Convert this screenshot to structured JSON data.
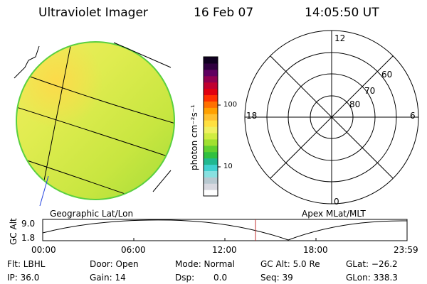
{
  "header": {
    "instrument": "Ultraviolet Imager",
    "date": "16 Feb 07",
    "time": "14:05:50 UT"
  },
  "colorbar": {
    "unit_label": "photon cm⁻²s⁻¹",
    "tick_100": "100",
    "tick_10": "10",
    "colors": [
      "#ffffff",
      "#d8d8e0",
      "#b8c8d0",
      "#88e0e0",
      "#40d0d0",
      "#20b890",
      "#30c040",
      "#60d030",
      "#a0e030",
      "#d0ec40",
      "#f0f060",
      "#ffe040",
      "#ffc030",
      "#ffa000",
      "#ff7000",
      "#ff3000",
      "#e00010",
      "#c00030",
      "#900050",
      "#600060",
      "#300040",
      "#100020"
    ]
  },
  "polar_plot": {
    "labels": {
      "mlt_12": "12",
      "mlt_18": "18",
      "mlt_6": "6",
      "mlt_0": "0",
      "lat_60": "60",
      "lat_70": "70",
      "lat_80": "80"
    }
  },
  "projection_labels": {
    "left": "Geographic Lat/Lon",
    "right": "Apex MLat/MLT"
  },
  "altitude_plot": {
    "ylabel": "GC Alt",
    "y_max": "9.0",
    "y_min": "1.8",
    "x_ticks": [
      "00:00",
      "06:00",
      "12:00",
      "18:00",
      "23:59"
    ],
    "cursor_color": "#c03030"
  },
  "info": {
    "filter": "Flt: LBHL",
    "ip": "IP: 36.0",
    "door": "Door: Open",
    "gain": "Gain: 14",
    "mode": "Mode: Normal",
    "dsp_label": "Dsp:",
    "dsp_value": "0.0",
    "gc_alt": "GC Alt: 5.0 Re",
    "seq": "Seq: 39",
    "glat": "GLat: −26.2",
    "glon": "GLon: 338.3"
  }
}
